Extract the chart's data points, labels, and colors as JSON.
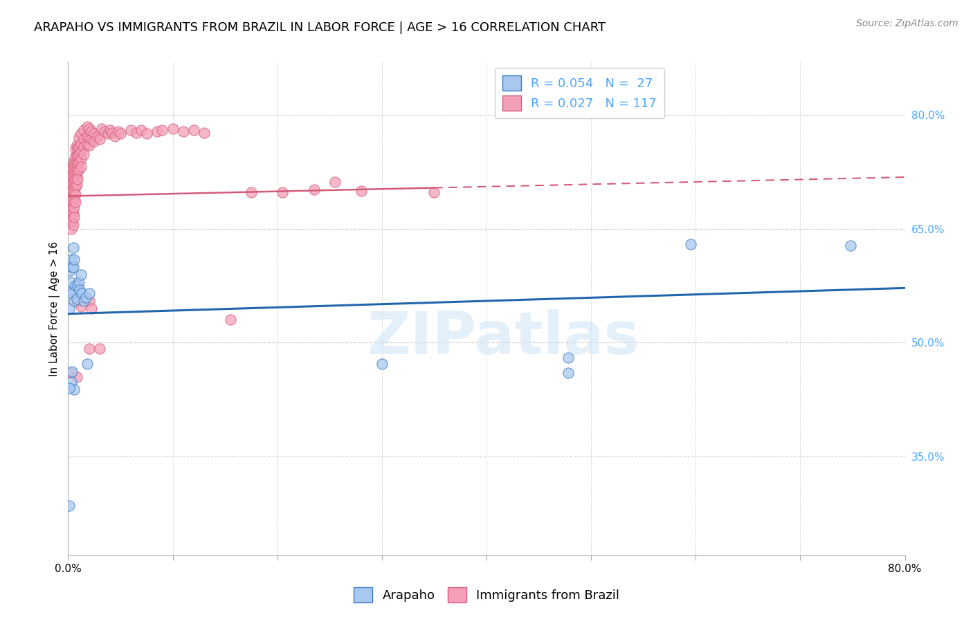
{
  "title": "ARAPAHO VS IMMIGRANTS FROM BRAZIL IN LABOR FORCE | AGE > 16 CORRELATION CHART",
  "source": "Source: ZipAtlas.com",
  "ylabel": "In Labor Force | Age > 16",
  "watermark": "ZIPatlas",
  "blue_R": 0.054,
  "blue_N": 27,
  "pink_R": 0.027,
  "pink_N": 117,
  "blue_color": "#a8c8f0",
  "pink_color": "#f4a0b8",
  "blue_edge_color": "#3a7abf",
  "pink_edge_color": "#d45a7a",
  "blue_line_color": "#2166ac",
  "pink_line_color": "#d45a7a",
  "grid_color": "#cccccc",
  "background_color": "#ffffff",
  "title_fontsize": 13,
  "axis_label_fontsize": 11,
  "tick_fontsize": 11,
  "legend_fontsize": 13,
  "source_fontsize": 10,
  "right_ytick_color": "#4da6ff",
  "right_ytick_values": [
    0.8,
    0.65,
    0.5,
    0.35
  ],
  "right_ytick_labels": [
    "80.0%",
    "65.0%",
    "50.0%",
    "35.0%"
  ],
  "xlim": [
    0.0,
    0.8
  ],
  "ylim": [
    0.22,
    0.87
  ],
  "blue_trend_x": [
    0.0,
    0.8
  ],
  "blue_trend_y": [
    0.538,
    0.572
  ],
  "pink_trend_x": [
    0.0,
    0.8
  ],
  "pink_trend_y": [
    0.693,
    0.718
  ],
  "blue_scatter": [
    [
      0.001,
      0.545
    ],
    [
      0.002,
      0.57
    ],
    [
      0.002,
      0.595
    ],
    [
      0.003,
      0.61
    ],
    [
      0.003,
      0.58
    ],
    [
      0.004,
      0.6
    ],
    [
      0.004,
      0.565
    ],
    [
      0.005,
      0.625
    ],
    [
      0.005,
      0.6
    ],
    [
      0.006,
      0.61
    ],
    [
      0.006,
      0.555
    ],
    [
      0.007,
      0.575
    ],
    [
      0.008,
      0.558
    ],
    [
      0.009,
      0.575
    ],
    [
      0.01,
      0.58
    ],
    [
      0.011,
      0.57
    ],
    [
      0.012,
      0.59
    ],
    [
      0.013,
      0.565
    ],
    [
      0.015,
      0.555
    ],
    [
      0.017,
      0.56
    ],
    [
      0.02,
      0.565
    ],
    [
      0.003,
      0.448
    ],
    [
      0.004,
      0.462
    ],
    [
      0.006,
      0.438
    ],
    [
      0.018,
      0.472
    ],
    [
      0.001,
      0.44
    ],
    [
      0.001,
      0.285
    ]
  ],
  "blue_far": [
    [
      0.3,
      0.472
    ],
    [
      0.478,
      0.46
    ],
    [
      0.478,
      0.48
    ],
    [
      0.595,
      0.63
    ],
    [
      0.748,
      0.628
    ]
  ],
  "pink_scatter_dense": [
    [
      0.001,
      0.71
    ],
    [
      0.001,
      0.695
    ],
    [
      0.001,
      0.72
    ],
    [
      0.001,
      0.705
    ],
    [
      0.001,
      0.685
    ],
    [
      0.002,
      0.715
    ],
    [
      0.002,
      0.7
    ],
    [
      0.002,
      0.69
    ],
    [
      0.002,
      0.675
    ],
    [
      0.002,
      0.66
    ],
    [
      0.002,
      0.71
    ],
    [
      0.003,
      0.72
    ],
    [
      0.003,
      0.71
    ],
    [
      0.003,
      0.7
    ],
    [
      0.003,
      0.69
    ],
    [
      0.003,
      0.68
    ],
    [
      0.003,
      0.665
    ],
    [
      0.003,
      0.65
    ],
    [
      0.003,
      0.73
    ],
    [
      0.004,
      0.73
    ],
    [
      0.004,
      0.72
    ],
    [
      0.004,
      0.71
    ],
    [
      0.004,
      0.7
    ],
    [
      0.004,
      0.688
    ],
    [
      0.004,
      0.675
    ],
    [
      0.004,
      0.66
    ],
    [
      0.005,
      0.735
    ],
    [
      0.005,
      0.725
    ],
    [
      0.005,
      0.715
    ],
    [
      0.005,
      0.705
    ],
    [
      0.005,
      0.695
    ],
    [
      0.005,
      0.685
    ],
    [
      0.005,
      0.67
    ],
    [
      0.005,
      0.655
    ],
    [
      0.006,
      0.74
    ],
    [
      0.006,
      0.73
    ],
    [
      0.006,
      0.72
    ],
    [
      0.006,
      0.71
    ],
    [
      0.006,
      0.7
    ],
    [
      0.006,
      0.69
    ],
    [
      0.006,
      0.678
    ],
    [
      0.006,
      0.665
    ],
    [
      0.007,
      0.755
    ],
    [
      0.007,
      0.745
    ],
    [
      0.007,
      0.735
    ],
    [
      0.007,
      0.725
    ],
    [
      0.007,
      0.715
    ],
    [
      0.007,
      0.705
    ],
    [
      0.007,
      0.695
    ],
    [
      0.007,
      0.685
    ],
    [
      0.008,
      0.76
    ],
    [
      0.008,
      0.748
    ],
    [
      0.008,
      0.738
    ],
    [
      0.008,
      0.728
    ],
    [
      0.008,
      0.718
    ],
    [
      0.008,
      0.708
    ],
    [
      0.009,
      0.755
    ],
    [
      0.009,
      0.745
    ],
    [
      0.009,
      0.735
    ],
    [
      0.009,
      0.725
    ],
    [
      0.009,
      0.715
    ],
    [
      0.01,
      0.77
    ],
    [
      0.01,
      0.758
    ],
    [
      0.01,
      0.748
    ],
    [
      0.01,
      0.738
    ],
    [
      0.01,
      0.728
    ],
    [
      0.012,
      0.775
    ],
    [
      0.012,
      0.762
    ],
    [
      0.012,
      0.752
    ],
    [
      0.012,
      0.742
    ],
    [
      0.012,
      0.732
    ],
    [
      0.015,
      0.78
    ],
    [
      0.015,
      0.768
    ],
    [
      0.015,
      0.758
    ],
    [
      0.015,
      0.748
    ],
    [
      0.018,
      0.785
    ],
    [
      0.018,
      0.772
    ],
    [
      0.018,
      0.762
    ],
    [
      0.02,
      0.782
    ],
    [
      0.02,
      0.77
    ],
    [
      0.02,
      0.76
    ],
    [
      0.022,
      0.778
    ],
    [
      0.022,
      0.768
    ],
    [
      0.025,
      0.775
    ],
    [
      0.025,
      0.765
    ],
    [
      0.028,
      0.772
    ],
    [
      0.03,
      0.768
    ],
    [
      0.032,
      0.782
    ],
    [
      0.035,
      0.778
    ],
    [
      0.038,
      0.775
    ],
    [
      0.04,
      0.78
    ],
    [
      0.042,
      0.776
    ],
    [
      0.045,
      0.772
    ],
    [
      0.048,
      0.778
    ],
    [
      0.05,
      0.775
    ],
    [
      0.06,
      0.78
    ],
    [
      0.065,
      0.776
    ],
    [
      0.07,
      0.78
    ],
    [
      0.075,
      0.775
    ],
    [
      0.085,
      0.778
    ],
    [
      0.09,
      0.78
    ],
    [
      0.1,
      0.782
    ],
    [
      0.11,
      0.778
    ],
    [
      0.12,
      0.78
    ],
    [
      0.13,
      0.776
    ],
    [
      0.008,
      0.555
    ],
    [
      0.012,
      0.548
    ],
    [
      0.02,
      0.555
    ],
    [
      0.022,
      0.545
    ],
    [
      0.003,
      0.46
    ],
    [
      0.008,
      0.455
    ],
    [
      0.02,
      0.492
    ],
    [
      0.03,
      0.492
    ],
    [
      0.155,
      0.53
    ],
    [
      0.175,
      0.698
    ],
    [
      0.205,
      0.698
    ],
    [
      0.235,
      0.702
    ],
    [
      0.255,
      0.712
    ],
    [
      0.28,
      0.7
    ],
    [
      0.35,
      0.698
    ]
  ]
}
